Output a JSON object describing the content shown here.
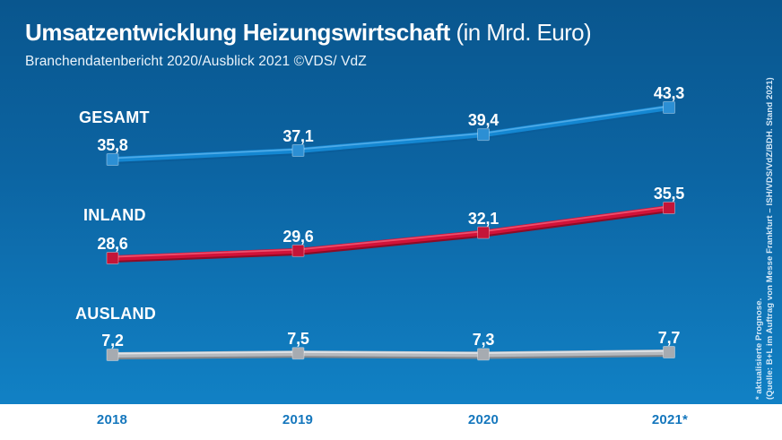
{
  "header": {
    "title_bold": "Umsatzentwicklung Heizungswirtschaft",
    "title_light": " (in Mrd. Euro)",
    "subtitle": "Branchendatenbericht 2020/Ausblick 2021 ©VDS/ VdZ"
  },
  "chart_data": {
    "type": "line",
    "title": "Umsatzentwicklung Heizungswirtschaft (in Mrd. Euro)",
    "unit": "Mrd. Euro",
    "categories": [
      "2018",
      "2019",
      "2020",
      "2021*"
    ],
    "series": [
      {
        "name": "GESAMT",
        "values": [
          35.8,
          37.1,
          39.4,
          43.3
        ],
        "color": "#1487d2",
        "color_light": "#54aee9",
        "color_dark": "#0a5d9a",
        "marker_color": "#2c8fd4"
      },
      {
        "name": "INLAND",
        "values": [
          28.6,
          29.6,
          32.1,
          35.5
        ],
        "color": "#d11239",
        "color_light": "#ef5672",
        "color_dark": "#8d0b26",
        "marker_color": "#c41538"
      },
      {
        "name": "AUSLAND",
        "values": [
          7.2,
          7.5,
          7.3,
          7.7
        ],
        "color": "#b5b9be",
        "color_light": "#e6e9ec",
        "color_dark": "#83878c",
        "marker_color": "#a6abb1"
      }
    ],
    "grid": false,
    "legend_position": "inline-left-of-series",
    "value_labels": "above-points",
    "decimal_separator": ","
  },
  "footnote": {
    "line1": "* aktualisierte Prognose.",
    "line2": "(Quelle: B+L im Auftrag von Messe Frankfurt – ISH/VDS/VdZ/BDH. Stand 2021)"
  },
  "colors": {
    "background_top": "#09568e",
    "background_bottom": "#1181c5",
    "text_primary": "#ffffff",
    "year_label": "#1577bd",
    "year_strip": "#ffffff"
  }
}
